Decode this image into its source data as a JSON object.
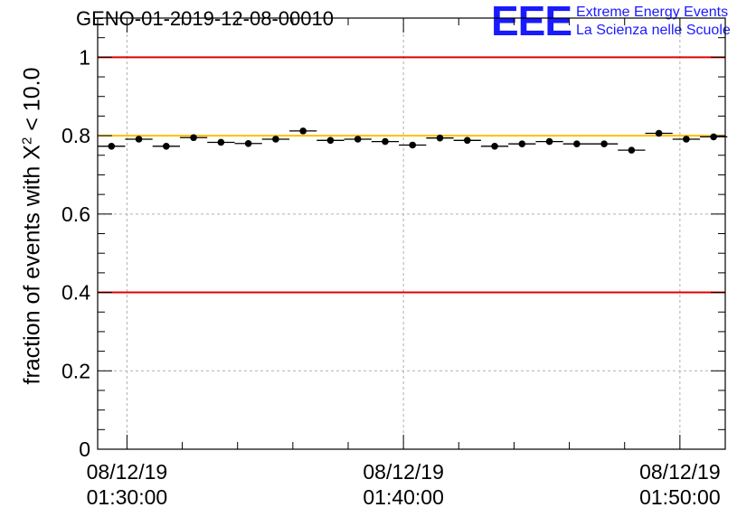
{
  "header": {
    "title": "GENO-01-2019-12-08-00010",
    "logo_text": "EEE",
    "logo_line1": "Extreme Energy Events",
    "logo_line2": "La Scienza nelle Scuole"
  },
  "chart_data": {
    "type": "scatter",
    "title": "GENO-01-2019-12-08-00010",
    "ylabel_prefix": "fraction of events with",
    "ylabel_symbol": "X",
    "ylabel_exp": "2",
    "ylabel_suffix": "< 10.0",
    "xlabel": "",
    "x_range_minutes": [
      -1.06,
      21.64
    ],
    "ylim": [
      0,
      1.1
    ],
    "y_ticks": [
      0,
      0.2,
      0.4,
      0.6,
      0.8,
      1
    ],
    "y_tick_labels": [
      "0",
      "0.2",
      "0.4",
      "0.6",
      "0.8",
      "1"
    ],
    "x_ticks_minutes": [
      0,
      10,
      20
    ],
    "x_tick_labels": [
      [
        "08/12/19",
        "01:30:00"
      ],
      [
        "08/12/19",
        "01:40:00"
      ],
      [
        "08/12/19",
        "01:50:00"
      ]
    ],
    "reference_lines": [
      {
        "value": 1.0,
        "color": "#e00000"
      },
      {
        "value": 0.4,
        "color": "#e00000"
      },
      {
        "value": 0.8,
        "color": "#ffbf00"
      }
    ],
    "bin_width_minutes": 0.99,
    "series": [
      {
        "name": "fraction",
        "x_minutes": [
          -0.56,
          0.43,
          1.42,
          2.41,
          3.4,
          4.39,
          5.38,
          6.37,
          7.36,
          8.35,
          9.34,
          10.33,
          11.32,
          12.31,
          13.3,
          14.29,
          15.28,
          16.27,
          17.26,
          18.25,
          19.24,
          20.23,
          21.22
        ],
        "values": [
          0.773,
          0.791,
          0.773,
          0.795,
          0.783,
          0.78,
          0.791,
          0.812,
          0.788,
          0.791,
          0.785,
          0.776,
          0.794,
          0.788,
          0.773,
          0.779,
          0.785,
          0.779,
          0.779,
          0.763,
          0.806,
          0.791,
          0.797
        ]
      }
    ]
  }
}
